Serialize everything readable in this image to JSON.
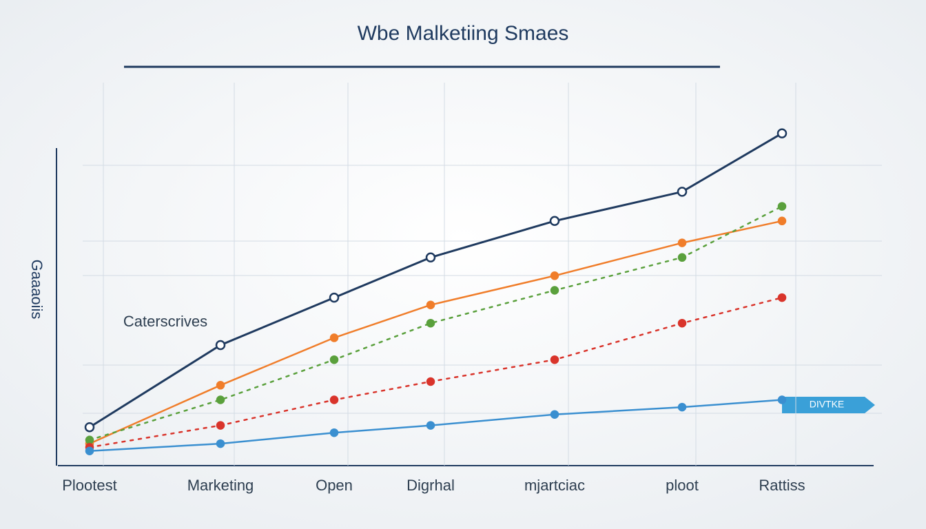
{
  "chart_data": {
    "type": "line",
    "title": "Wbe Malketiing Smaes",
    "y_label": "Gaaaoiis",
    "annotation": "Caterscrives",
    "tag": "DIVTKE",
    "categories": [
      "Plootest",
      "Marketing",
      "Open",
      "Digrhal",
      "mjartciac",
      "ploot",
      "Rattiss"
    ],
    "ylim": [
      0,
      100
    ],
    "grid": true,
    "series": [
      {
        "color": "#1f3a5f",
        "dashed": false,
        "values": [
          7.5,
          30,
          43,
          54,
          64,
          72,
          88
        ]
      },
      {
        "color": "#f07d2a",
        "dashed": false,
        "values": [
          3,
          19,
          32,
          41,
          49,
          58,
          64
        ]
      },
      {
        "color": "#5aa03c",
        "dashed": true,
        "values": [
          4,
          15,
          26,
          36,
          45,
          54,
          68
        ]
      },
      {
        "color": "#d9342b",
        "dashed": true,
        "values": [
          2,
          8,
          15,
          20,
          26,
          36,
          43
        ]
      },
      {
        "color": "#3a8fd0",
        "dashed": false,
        "values": [
          1,
          3,
          6,
          8,
          11,
          13,
          15
        ]
      }
    ]
  }
}
